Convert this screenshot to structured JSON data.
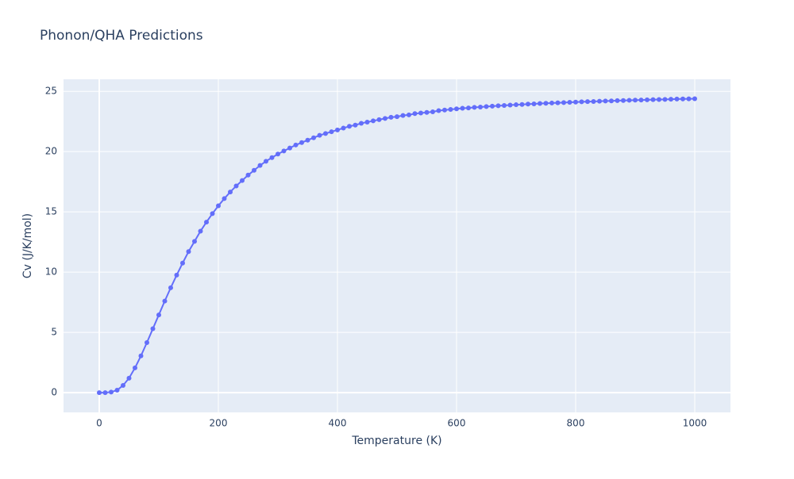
{
  "chart_data": {
    "type": "line",
    "title": "Phonon/QHA Predictions",
    "x_label": "Temperature (K)",
    "y_label": "Cv (J/K/mol)",
    "x": [
      0,
      10,
      20,
      30,
      40,
      50,
      60,
      70,
      80,
      90,
      100,
      110,
      120,
      130,
      140,
      150,
      160,
      170,
      180,
      190,
      200,
      210,
      220,
      230,
      240,
      250,
      260,
      270,
      280,
      290,
      300,
      310,
      320,
      330,
      340,
      350,
      360,
      370,
      380,
      390,
      400,
      410,
      420,
      430,
      440,
      450,
      460,
      470,
      480,
      490,
      500,
      510,
      520,
      530,
      540,
      550,
      560,
      570,
      580,
      590,
      600,
      610,
      620,
      630,
      640,
      650,
      660,
      670,
      680,
      690,
      700,
      710,
      720,
      730,
      740,
      750,
      760,
      770,
      780,
      790,
      800,
      810,
      820,
      830,
      840,
      850,
      860,
      870,
      880,
      890,
      900,
      910,
      920,
      930,
      940,
      950,
      960,
      970,
      980,
      990,
      1000
    ],
    "series": [
      {
        "name": "Cv",
        "color": "#636efa",
        "values": [
          0,
          0,
          0.05,
          0.2,
          0.6,
          1.2,
          2.05,
          3.05,
          4.15,
          5.3,
          6.45,
          7.6,
          8.7,
          9.75,
          10.75,
          11.7,
          12.55,
          13.4,
          14.15,
          14.85,
          15.5,
          16.1,
          16.65,
          17.15,
          17.6,
          18.05,
          18.45,
          18.85,
          19.2,
          19.5,
          19.8,
          20.05,
          20.3,
          20.55,
          20.75,
          20.95,
          21.15,
          21.35,
          21.5,
          21.65,
          21.8,
          21.95,
          22.1,
          22.2,
          22.35,
          22.45,
          22.55,
          22.65,
          22.75,
          22.85,
          22.9,
          23,
          23.05,
          23.15,
          23.2,
          23.25,
          23.3,
          23.4,
          23.45,
          23.5,
          23.55,
          23.6,
          23.62,
          23.67,
          23.7,
          23.74,
          23.77,
          23.8,
          23.83,
          23.86,
          23.89,
          23.91,
          23.94,
          23.96,
          23.99,
          24.01,
          24.03,
          24.05,
          24.07,
          24.09,
          24.11,
          24.13,
          24.15,
          24.16,
          24.18,
          24.2,
          24.21,
          24.23,
          24.24,
          24.26,
          24.27,
          24.28,
          24.3,
          24.31,
          24.32,
          24.33,
          24.35,
          24.36,
          24.37,
          24.38,
          24.39
        ]
      }
    ],
    "xlim": [
      -60,
      1060
    ],
    "xticks": [
      0,
      200,
      400,
      600,
      800,
      1000
    ],
    "ylim": [
      -1.64,
      26
    ],
    "yticks": [
      0,
      5,
      10,
      15,
      20,
      25
    ],
    "grid": true,
    "background": "#e5ecf6"
  }
}
